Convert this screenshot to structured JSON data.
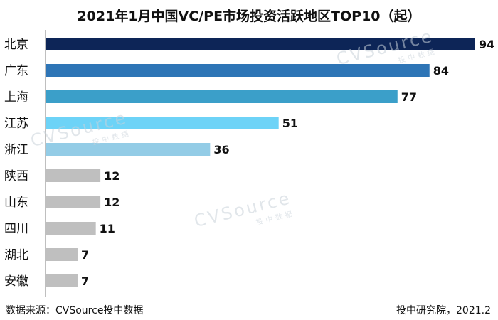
{
  "title": "2021年1月中国VC/PE市场投资活跃地区TOP10（起）",
  "watermark": {
    "brand": "CVSource",
    "sub": "投中数据"
  },
  "footer": {
    "source": "数据来源：CVSource投中数据",
    "publisher": "投中研究院，2021.2"
  },
  "chart_data": {
    "type": "bar",
    "orientation": "horizontal",
    "title": "2021年1月中国VC/PE市场投资活跃地区TOP10（起）",
    "categories": [
      "北京",
      "广东",
      "上海",
      "江苏",
      "浙江",
      "陕西",
      "山东",
      "四川",
      "湖北",
      "安徽"
    ],
    "values": [
      94,
      84,
      77,
      51,
      36,
      12,
      12,
      11,
      7,
      7
    ],
    "colors": [
      "#0d2557",
      "#2e75b6",
      "#3b9fc9",
      "#6dd3f7",
      "#93cce6",
      "#bfbfbf",
      "#bfbfbf",
      "#bfbfbf",
      "#bfbfbf",
      "#bfbfbf"
    ],
    "data_labels": true,
    "grid": false,
    "legend": "none",
    "xlim": [
      0,
      100
    ]
  }
}
